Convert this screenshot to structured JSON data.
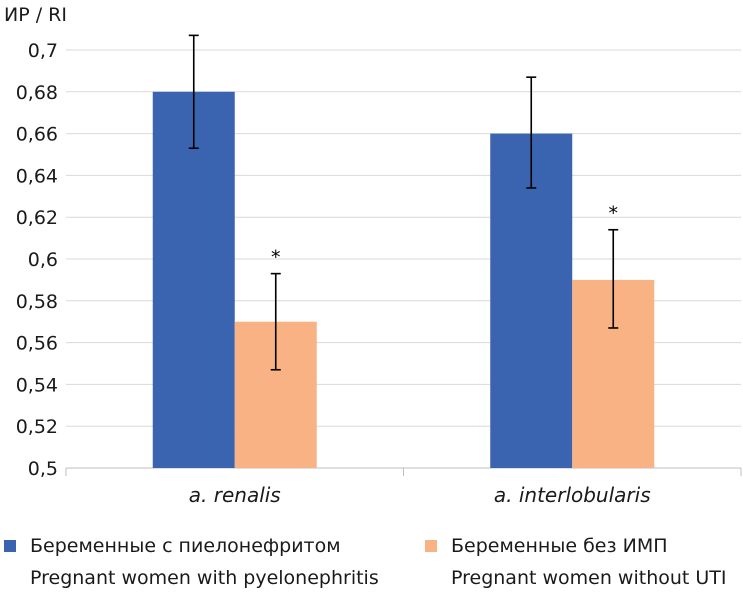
{
  "chart_data": {
    "type": "bar",
    "ylabel": "ИР / RI",
    "categories": [
      "a. renalis",
      "a. interlobularis"
    ],
    "ylim": [
      0.5,
      0.7
    ],
    "yticks": [
      "0,5",
      "0,52",
      "0,54",
      "0,56",
      "0,58",
      "0,6",
      "0,62",
      "0,64",
      "0,66",
      "0,68",
      "0,7"
    ],
    "series": [
      {
        "name": "Беременные с пиелонефритом",
        "name_en": "Pregnant women with pyelonephritis",
        "color": "#3a64b0",
        "values": [
          0.68,
          0.66
        ],
        "err_low": [
          0.653,
          0.634
        ],
        "err_high": [
          0.707,
          0.687
        ],
        "markers": [
          "",
          ""
        ]
      },
      {
        "name": "Беременные без ИМП",
        "name_en": "Pregnant women without UTI",
        "color": "#f8b283",
        "values": [
          0.57,
          0.59
        ],
        "err_low": [
          0.547,
          0.567
        ],
        "err_high": [
          0.593,
          0.614
        ],
        "markers": [
          "*",
          "*"
        ]
      }
    ]
  }
}
